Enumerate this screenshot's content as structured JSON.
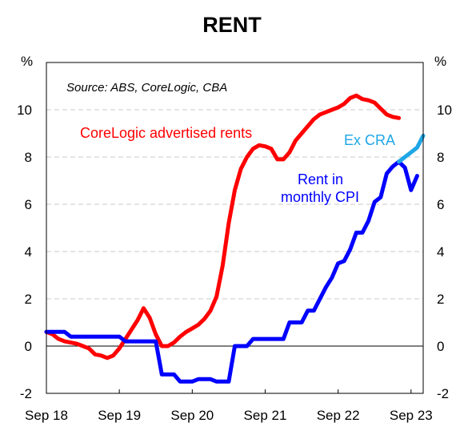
{
  "chart_data": {
    "type": "line",
    "title": "RENT",
    "source": "Source: ABS, CoreLogic, CBA",
    "unit_left": "%",
    "unit_right": "%",
    "ylim": [
      -2,
      12
    ],
    "yticks": [
      -2,
      0,
      2,
      4,
      6,
      8,
      10
    ],
    "ytick_labels": [
      "-2",
      "0",
      "2",
      "4",
      "6",
      "8",
      "10"
    ],
    "x_axis": {
      "start": "2018-09",
      "end": "2023-11",
      "tick_labels": [
        "Sep 18",
        "Sep 19",
        "Sep 20",
        "Sep 21",
        "Sep 22",
        "Sep 23"
      ],
      "tick_dates": [
        "2018-09",
        "2019-09",
        "2020-09",
        "2021-09",
        "2022-09",
        "2023-09"
      ]
    },
    "grid": "dashed horizontal",
    "series": [
      {
        "name": "CoreLogic advertised rents",
        "label_lines": [
          "CoreLogic advertised rents"
        ],
        "color": "#ff0000",
        "points": [
          [
            "2018-09",
            0.6
          ],
          [
            "2018-10",
            0.5
          ],
          [
            "2018-11",
            0.3
          ],
          [
            "2018-12",
            0.2
          ],
          [
            "2019-01",
            0.15
          ],
          [
            "2019-02",
            0.1
          ],
          [
            "2019-03",
            0.0
          ],
          [
            "2019-04",
            -0.1
          ],
          [
            "2019-05",
            -0.35
          ],
          [
            "2019-06",
            -0.4
          ],
          [
            "2019-07",
            -0.5
          ],
          [
            "2019-08",
            -0.4
          ],
          [
            "2019-09",
            -0.1
          ],
          [
            "2019-10",
            0.3
          ],
          [
            "2019-11",
            0.7
          ],
          [
            "2019-12",
            1.1
          ],
          [
            "2020-01",
            1.6
          ],
          [
            "2020-02",
            1.2
          ],
          [
            "2020-03",
            0.5
          ],
          [
            "2020-04",
            0.0
          ],
          [
            "2020-05",
            0.0
          ],
          [
            "2020-06",
            0.15
          ],
          [
            "2020-07",
            0.4
          ],
          [
            "2020-08",
            0.6
          ],
          [
            "2020-09",
            0.75
          ],
          [
            "2020-10",
            0.9
          ],
          [
            "2020-11",
            1.15
          ],
          [
            "2020-12",
            1.5
          ],
          [
            "2021-01",
            2.1
          ],
          [
            "2021-02",
            3.4
          ],
          [
            "2021-03",
            5.2
          ],
          [
            "2021-04",
            6.6
          ],
          [
            "2021-05",
            7.5
          ],
          [
            "2021-06",
            8.0
          ],
          [
            "2021-07",
            8.35
          ],
          [
            "2021-08",
            8.5
          ],
          [
            "2021-09",
            8.45
          ],
          [
            "2021-10",
            8.35
          ],
          [
            "2021-11",
            7.9
          ],
          [
            "2021-12",
            7.9
          ],
          [
            "2022-01",
            8.2
          ],
          [
            "2022-02",
            8.7
          ],
          [
            "2022-03",
            9.0
          ],
          [
            "2022-04",
            9.3
          ],
          [
            "2022-05",
            9.6
          ],
          [
            "2022-06",
            9.8
          ],
          [
            "2022-07",
            9.9
          ],
          [
            "2022-08",
            10.0
          ],
          [
            "2022-09",
            10.1
          ],
          [
            "2022-10",
            10.25
          ],
          [
            "2022-11",
            10.5
          ],
          [
            "2022-12",
            10.6
          ],
          [
            "2023-01",
            10.45
          ],
          [
            "2023-02",
            10.4
          ],
          [
            "2023-03",
            10.3
          ],
          [
            "2023-04",
            10.05
          ],
          [
            "2023-05",
            9.8
          ],
          [
            "2023-06",
            9.7
          ],
          [
            "2023-07",
            9.65
          ]
        ]
      },
      {
        "name": "Rent in monthly CPI",
        "label_lines": [
          "Rent in",
          "monthly CPI"
        ],
        "color": "#0000ff",
        "points": [
          [
            "2018-09",
            0.6
          ],
          [
            "2018-10",
            0.6
          ],
          [
            "2018-11",
            0.6
          ],
          [
            "2018-12",
            0.6
          ],
          [
            "2019-01",
            0.4
          ],
          [
            "2019-02",
            0.4
          ],
          [
            "2019-03",
            0.4
          ],
          [
            "2019-04",
            0.4
          ],
          [
            "2019-05",
            0.4
          ],
          [
            "2019-06",
            0.4
          ],
          [
            "2019-07",
            0.4
          ],
          [
            "2019-08",
            0.4
          ],
          [
            "2019-09",
            0.4
          ],
          [
            "2019-10",
            0.2
          ],
          [
            "2019-11",
            0.2
          ],
          [
            "2019-12",
            0.2
          ],
          [
            "2020-01",
            0.2
          ],
          [
            "2020-02",
            0.2
          ],
          [
            "2020-03",
            0.2
          ],
          [
            "2020-04",
            -1.2
          ],
          [
            "2020-05",
            -1.2
          ],
          [
            "2020-06",
            -1.2
          ],
          [
            "2020-07",
            -1.5
          ],
          [
            "2020-08",
            -1.5
          ],
          [
            "2020-09",
            -1.5
          ],
          [
            "2020-10",
            -1.4
          ],
          [
            "2020-11",
            -1.4
          ],
          [
            "2020-12",
            -1.4
          ],
          [
            "2021-01",
            -1.5
          ],
          [
            "2021-02",
            -1.5
          ],
          [
            "2021-03",
            -1.5
          ],
          [
            "2021-04",
            0.0
          ],
          [
            "2021-05",
            0.0
          ],
          [
            "2021-06",
            0.0
          ],
          [
            "2021-07",
            0.3
          ],
          [
            "2021-08",
            0.3
          ],
          [
            "2021-09",
            0.3
          ],
          [
            "2021-10",
            0.3
          ],
          [
            "2021-11",
            0.3
          ],
          [
            "2021-12",
            0.3
          ],
          [
            "2022-01",
            1.0
          ],
          [
            "2022-02",
            1.0
          ],
          [
            "2022-03",
            1.0
          ],
          [
            "2022-04",
            1.5
          ],
          [
            "2022-05",
            1.5
          ],
          [
            "2022-06",
            2.0
          ],
          [
            "2022-07",
            2.5
          ],
          [
            "2022-08",
            2.9
          ],
          [
            "2022-09",
            3.5
          ],
          [
            "2022-10",
            3.6
          ],
          [
            "2022-11",
            4.1
          ],
          [
            "2022-12",
            4.8
          ],
          [
            "2023-01",
            4.8
          ],
          [
            "2023-02",
            5.3
          ],
          [
            "2023-03",
            6.1
          ],
          [
            "2023-04",
            6.3
          ],
          [
            "2023-05",
            7.3
          ],
          [
            "2023-06",
            7.6
          ],
          [
            "2023-07",
            7.8
          ],
          [
            "2023-08",
            7.55
          ],
          [
            "2023-09",
            6.6
          ],
          [
            "2023-10",
            7.2
          ]
        ]
      },
      {
        "name": "Ex CRA",
        "label_lines": [
          "Ex CRA"
        ],
        "color": "#1ea6e6",
        "points": [
          [
            "2023-07",
            7.8
          ],
          [
            "2023-08",
            8.0
          ],
          [
            "2023-09",
            8.2
          ],
          [
            "2023-10",
            8.4
          ],
          [
            "2023-11",
            8.9
          ]
        ]
      }
    ]
  }
}
